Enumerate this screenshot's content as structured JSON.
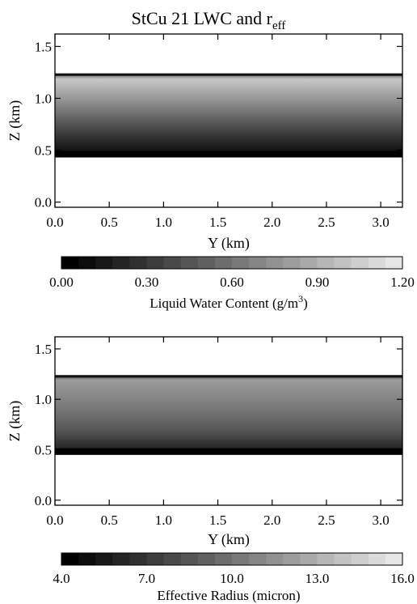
{
  "figure": {
    "title": "StCu 21 LWC and r",
    "title_sub": "eff"
  },
  "chart_data": [
    {
      "type": "heatmap",
      "xlabel": "Y (km)",
      "ylabel": "Z (km)",
      "xlim": [
        0.0,
        3.2
      ],
      "ylim": [
        -0.05,
        1.62
      ],
      "x_ticks": [
        "0.0",
        "0.5",
        "1.0",
        "1.5",
        "2.0",
        "2.5",
        "3.0"
      ],
      "x_tick_values": [
        0.0,
        0.5,
        1.0,
        1.5,
        2.0,
        2.5,
        3.0
      ],
      "y_ticks": [
        "0.0",
        "0.5",
        "1.0",
        "1.5"
      ],
      "y_tick_values": [
        0.0,
        0.5,
        1.0,
        1.5
      ],
      "cloud_base_km": 0.43,
      "cloud_top_km": 1.24,
      "field_range": [
        0.0,
        1.2
      ],
      "colorbar": {
        "label": "Liquid Water Content (g/m",
        "label_sup": "3",
        "label_end": ")",
        "ticks": [
          "0.00",
          "0.30",
          "0.60",
          "0.90",
          "1.20"
        ],
        "tick_values": [
          0.0,
          0.3,
          0.6,
          0.9,
          1.2
        ],
        "range": [
          0.0,
          1.2
        ],
        "levels": 20
      }
    },
    {
      "type": "heatmap",
      "xlabel": "Y (km)",
      "ylabel": "Z (km)",
      "xlim": [
        0.0,
        3.2
      ],
      "ylim": [
        -0.05,
        1.62
      ],
      "x_ticks": [
        "0.0",
        "0.5",
        "1.0",
        "1.5",
        "2.0",
        "2.5",
        "3.0"
      ],
      "x_tick_values": [
        0.0,
        0.5,
        1.0,
        1.5,
        2.0,
        2.5,
        3.0
      ],
      "y_ticks": [
        "0.0",
        "0.5",
        "1.0",
        "1.5"
      ],
      "y_tick_values": [
        0.0,
        0.5,
        1.0,
        1.5
      ],
      "cloud_base_km": 0.45,
      "cloud_top_km": 1.24,
      "field_range": [
        4.0,
        16.0
      ],
      "colorbar": {
        "label": "Effective Radius (micron)",
        "label_sup": "",
        "label_end": "",
        "ticks": [
          "4.0",
          "7.0",
          "10.0",
          "13.0",
          "16.0"
        ],
        "tick_values": [
          4.0,
          7.0,
          10.0,
          13.0,
          16.0
        ],
        "range": [
          4.0,
          16.0
        ],
        "levels": 20
      }
    }
  ]
}
